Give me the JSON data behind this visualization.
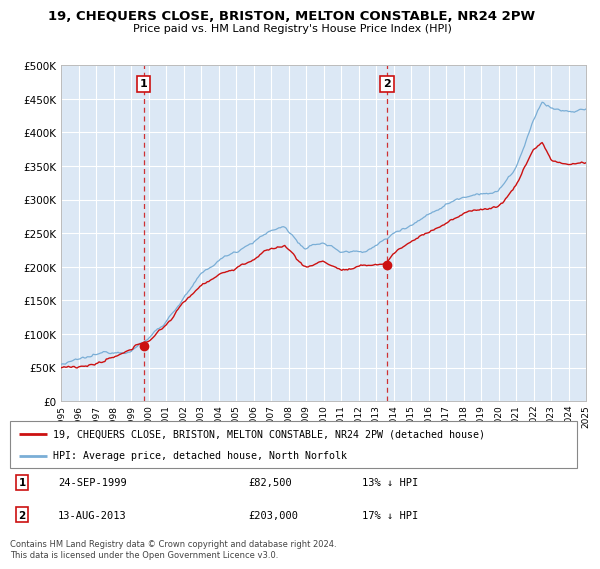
{
  "title": "19, CHEQUERS CLOSE, BRISTON, MELTON CONSTABLE, NR24 2PW",
  "subtitle": "Price paid vs. HM Land Registry's House Price Index (HPI)",
  "ylim": [
    0,
    500000
  ],
  "yticks": [
    0,
    50000,
    100000,
    150000,
    200000,
    250000,
    300000,
    350000,
    400000,
    450000,
    500000
  ],
  "plot_bg_color": "#dce8f5",
  "fig_bg_color": "#ffffff",
  "grid_color": "#ffffff",
  "hpi_color": "#7aaed6",
  "price_color": "#cc1111",
  "sale1_price": 82500,
  "sale1_x": 1999.73,
  "sale2_price": 203000,
  "sale2_x": 2013.62,
  "legend_entry1": "19, CHEQUERS CLOSE, BRISTON, MELTON CONSTABLE, NR24 2PW (detached house)",
  "legend_entry2": "HPI: Average price, detached house, North Norfolk",
  "footer": "Contains HM Land Registry data © Crown copyright and database right 2024.\nThis data is licensed under the Open Government Licence v3.0.",
  "xmin": 1995,
  "xmax": 2025
}
